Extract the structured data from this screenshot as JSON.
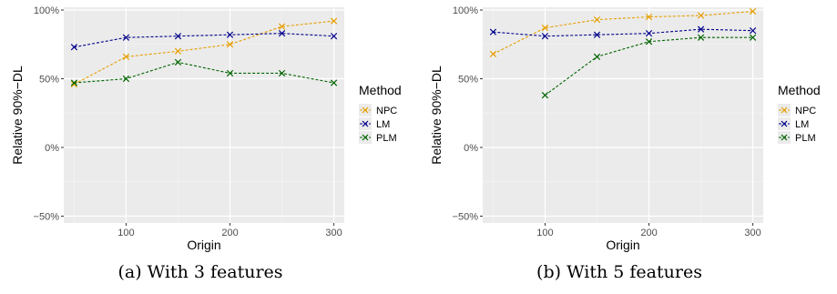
{
  "chart_data": [
    {
      "type": "line",
      "caption": "(a) With 3 features",
      "xlabel": "Origin",
      "ylabel": "Relative 90%−DL",
      "xlim": [
        40,
        310
      ],
      "ylim": [
        -55,
        102
      ],
      "x_ticks": [
        100,
        200,
        300
      ],
      "y_ticks": [
        -50,
        0,
        50,
        100
      ],
      "y_tick_labels": [
        "−50%",
        "0%",
        "50%",
        "100%"
      ],
      "grid": true,
      "legend": {
        "title": "Method",
        "position": "right"
      },
      "series": [
        {
          "name": "NPC",
          "color": "#E69F00",
          "x": [
            50,
            100,
            150,
            200,
            250,
            300
          ],
          "y": [
            46,
            66,
            70,
            75,
            88,
            92
          ]
        },
        {
          "name": "LM",
          "color": "#00008B",
          "x": [
            50,
            100,
            150,
            200,
            250,
            300
          ],
          "y": [
            73,
            80,
            81,
            82,
            83,
            81
          ]
        },
        {
          "name": "PLM",
          "color": "#006400",
          "x": [
            50,
            100,
            150,
            200,
            250,
            300
          ],
          "y": [
            47,
            50,
            62,
            54,
            54,
            47
          ]
        }
      ]
    },
    {
      "type": "line",
      "caption": "(b) With 5 features",
      "xlabel": "Origin",
      "ylabel": "Relative 90%−DL",
      "xlim": [
        40,
        310
      ],
      "ylim": [
        -55,
        102
      ],
      "x_ticks": [
        100,
        200,
        300
      ],
      "y_ticks": [
        -50,
        0,
        50,
        100
      ],
      "y_tick_labels": [
        "−50%",
        "0%",
        "50%",
        "100%"
      ],
      "grid": true,
      "legend": {
        "title": "Method",
        "position": "right"
      },
      "series": [
        {
          "name": "NPC",
          "color": "#E69F00",
          "x": [
            50,
            100,
            150,
            200,
            250,
            300
          ],
          "y": [
            68,
            87,
            93,
            95,
            96,
            99
          ]
        },
        {
          "name": "LM",
          "color": "#00008B",
          "x": [
            50,
            100,
            150,
            200,
            250,
            300
          ],
          "y": [
            84,
            81,
            82,
            83,
            86,
            85
          ]
        },
        {
          "name": "PLM",
          "color": "#006400",
          "x": [
            100,
            150,
            200,
            250,
            300
          ],
          "y": [
            38,
            66,
            77,
            80,
            80
          ]
        }
      ]
    }
  ]
}
